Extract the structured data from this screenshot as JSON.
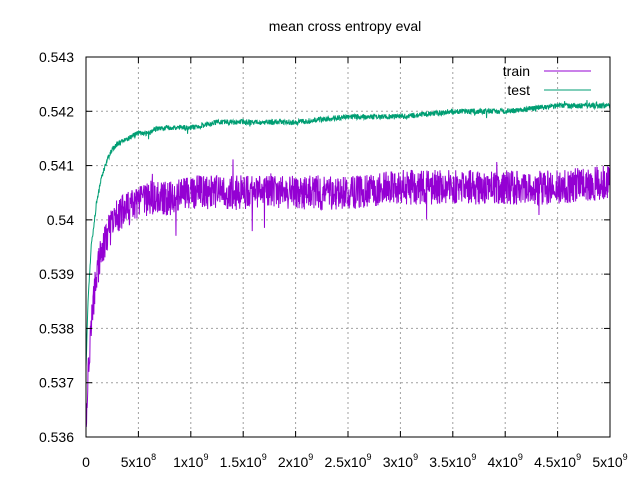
{
  "chart_data": {
    "type": "line",
    "title": "mean cross entropy eval",
    "xlabel": "",
    "ylabel": "",
    "xlim": [
      0,
      5000000000
    ],
    "ylim": [
      0.536,
      0.543
    ],
    "grid": true,
    "legend_position": "top-right",
    "x_ticks": [
      {
        "value": 0,
        "label": "0",
        "exp": ""
      },
      {
        "value": 500000000,
        "label": "5x10",
        "exp": "8"
      },
      {
        "value": 1000000000,
        "label": "1x10",
        "exp": "9"
      },
      {
        "value": 1500000000,
        "label": "1.5x10",
        "exp": "9"
      },
      {
        "value": 2000000000,
        "label": "2x10",
        "exp": "9"
      },
      {
        "value": 2500000000,
        "label": "2.5x10",
        "exp": "9"
      },
      {
        "value": 3000000000,
        "label": "3x10",
        "exp": "9"
      },
      {
        "value": 3500000000,
        "label": "3.5x10",
        "exp": "9"
      },
      {
        "value": 4000000000,
        "label": "4x10",
        "exp": "9"
      },
      {
        "value": 4500000000,
        "label": "4.5x10",
        "exp": "9"
      },
      {
        "value": 5000000000,
        "label": "5x10",
        "exp": "9"
      }
    ],
    "y_ticks": [
      {
        "value": 0.536,
        "label": "0.536"
      },
      {
        "value": 0.537,
        "label": "0.537"
      },
      {
        "value": 0.538,
        "label": "0.538"
      },
      {
        "value": 0.539,
        "label": "0.539"
      },
      {
        "value": 0.54,
        "label": "0.54"
      },
      {
        "value": 0.541,
        "label": "0.541"
      },
      {
        "value": 0.542,
        "label": "0.542"
      },
      {
        "value": 0.543,
        "label": "0.543"
      }
    ],
    "series": [
      {
        "name": "train",
        "color": "#9400d3",
        "x": [
          0,
          20000000,
          50000000,
          100000000,
          150000000,
          200000000,
          250000000,
          300000000,
          400000000,
          500000000,
          600000000,
          700000000,
          800000000,
          900000000,
          1000000000,
          1250000000,
          1500000000,
          2000000000,
          2500000000,
          3000000000,
          3500000000,
          4000000000,
          4500000000,
          5000000000
        ],
        "values": [
          0.5362,
          0.5372,
          0.5381,
          0.539,
          0.5394,
          0.5397,
          0.5399,
          0.5401,
          0.5402,
          0.5403,
          0.5404,
          0.5404,
          0.5404,
          0.5405,
          0.5405,
          0.5405,
          0.5405,
          0.5405,
          0.5405,
          0.5406,
          0.5406,
          0.5406,
          0.5406,
          0.5407
        ],
        "noise": 0.00032
      },
      {
        "name": "test",
        "color": "#009e73",
        "x": [
          0,
          20000000,
          50000000,
          100000000,
          150000000,
          200000000,
          250000000,
          300000000,
          400000000,
          500000000,
          600000000,
          700000000,
          800000000,
          900000000,
          1000000000,
          1250000000,
          1500000000,
          2000000000,
          2500000000,
          3000000000,
          3500000000,
          4000000000,
          4500000000,
          5000000000
        ],
        "values": [
          0.5373,
          0.5385,
          0.5395,
          0.5403,
          0.5408,
          0.5411,
          0.5413,
          0.5414,
          0.5415,
          0.5416,
          0.5416,
          0.5417,
          0.5417,
          0.5417,
          0.5417,
          0.5418,
          0.5418,
          0.5418,
          0.5419,
          0.5419,
          0.542,
          0.542,
          0.5421,
          0.5421
        ],
        "noise": 5e-05
      }
    ]
  }
}
